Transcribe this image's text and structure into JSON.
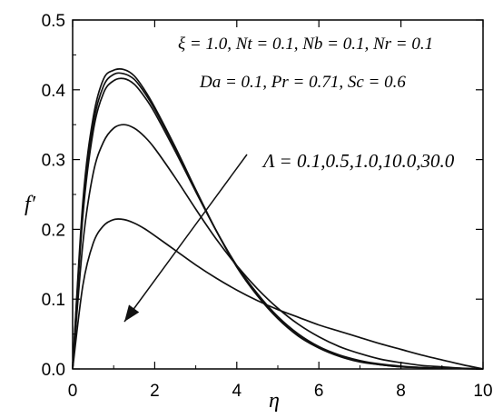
{
  "chart_data": {
    "type": "line",
    "title": "",
    "xlabel": "η",
    "ylabel": "f′",
    "xlim": [
      0,
      10
    ],
    "ylim": [
      0,
      0.5
    ],
    "xticks": [
      0,
      2,
      4,
      6,
      8,
      10
    ],
    "yticks": [
      0.0,
      0.1,
      0.2,
      0.3,
      0.4,
      0.5
    ],
    "xtick_labels": [
      "0",
      "2",
      "4",
      "6",
      "8",
      "10"
    ],
    "ytick_labels": [
      "0.0",
      "0.1",
      "0.2",
      "0.3",
      "0.4",
      "0.5"
    ],
    "grid": false,
    "legend": "none",
    "annotations": {
      "line1": "ξ = 1.0, Nt = 0.1, Nb = 0.1, Nr = 0.1",
      "line2": "Da = 0.1, Pr = 0.71, Sc = 0.6",
      "param": "Λ = 0.1,0.5,1.0,10.0,30.0"
    },
    "x": [
      0,
      0.25,
      0.5,
      0.75,
      1.0,
      1.25,
      1.5,
      1.75,
      2.0,
      2.5,
      3.0,
      3.5,
      4.0,
      4.5,
      5.0,
      5.5,
      6.0,
      6.5,
      7.0,
      7.5,
      8.0,
      8.5,
      9.0,
      9.5,
      10.0
    ],
    "series": [
      {
        "values": [
          0,
          0.24,
          0.36,
          0.415,
          0.428,
          0.429,
          0.42,
          0.4,
          0.375,
          0.318,
          0.257,
          0.198,
          0.146,
          0.105,
          0.072,
          0.047,
          0.03,
          0.018,
          0.01,
          0.006,
          0.003,
          0.002,
          0.001,
          0.0005,
          0
        ]
      },
      {
        "values": [
          0,
          0.23,
          0.35,
          0.405,
          0.422,
          0.423,
          0.415,
          0.396,
          0.372,
          0.316,
          0.256,
          0.198,
          0.147,
          0.106,
          0.073,
          0.048,
          0.031,
          0.019,
          0.011,
          0.006,
          0.003,
          0.002,
          0.001,
          0.0005,
          0
        ]
      },
      {
        "values": [
          0,
          0.22,
          0.34,
          0.395,
          0.413,
          0.416,
          0.408,
          0.39,
          0.367,
          0.312,
          0.254,
          0.198,
          0.148,
          0.108,
          0.075,
          0.05,
          0.032,
          0.02,
          0.012,
          0.007,
          0.004,
          0.002,
          0.001,
          0.0005,
          0
        ]
      },
      {
        "values": [
          0,
          0.18,
          0.28,
          0.325,
          0.345,
          0.35,
          0.345,
          0.333,
          0.316,
          0.274,
          0.229,
          0.186,
          0.148,
          0.115,
          0.087,
          0.064,
          0.046,
          0.032,
          0.022,
          0.014,
          0.009,
          0.005,
          0.003,
          0.001,
          0
        ]
      },
      {
        "values": [
          0,
          0.12,
          0.18,
          0.205,
          0.214,
          0.214,
          0.209,
          0.201,
          0.191,
          0.17,
          0.149,
          0.13,
          0.113,
          0.098,
          0.085,
          0.074,
          0.063,
          0.054,
          0.045,
          0.036,
          0.028,
          0.02,
          0.013,
          0.006,
          0
        ]
      }
    ]
  }
}
